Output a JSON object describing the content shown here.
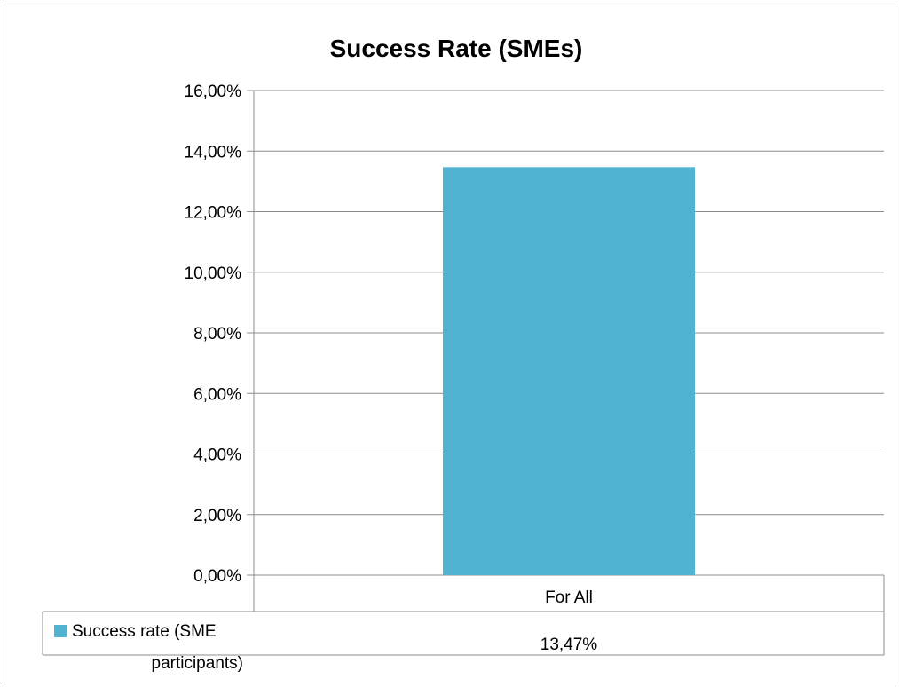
{
  "chart_data": {
    "type": "bar",
    "title": "Success Rate (SMEs)",
    "categories": [
      "For All"
    ],
    "series": [
      {
        "name": "Success rate (SME participants)",
        "values": [
          13.47
        ],
        "data_labels": [
          "13,47%"
        ],
        "color": "#4FB3D1"
      }
    ],
    "ylim": [
      0,
      16
    ],
    "y_ticks": [
      0,
      2,
      4,
      6,
      8,
      10,
      12,
      14,
      16
    ],
    "y_tick_labels": [
      "0,00%",
      "2,00%",
      "4,00%",
      "6,00%",
      "8,00%",
      "10,00%",
      "12,00%",
      "14,00%",
      "16,00%"
    ],
    "grid": true,
    "legend": "data-table-bottom",
    "data_table": true,
    "legend_label_lines": [
      "Success rate (SME",
      "participants)"
    ],
    "colors": {
      "bar": "#4FB3D1",
      "grid": "#8c8c8c",
      "border": "#8c8c8c"
    }
  }
}
